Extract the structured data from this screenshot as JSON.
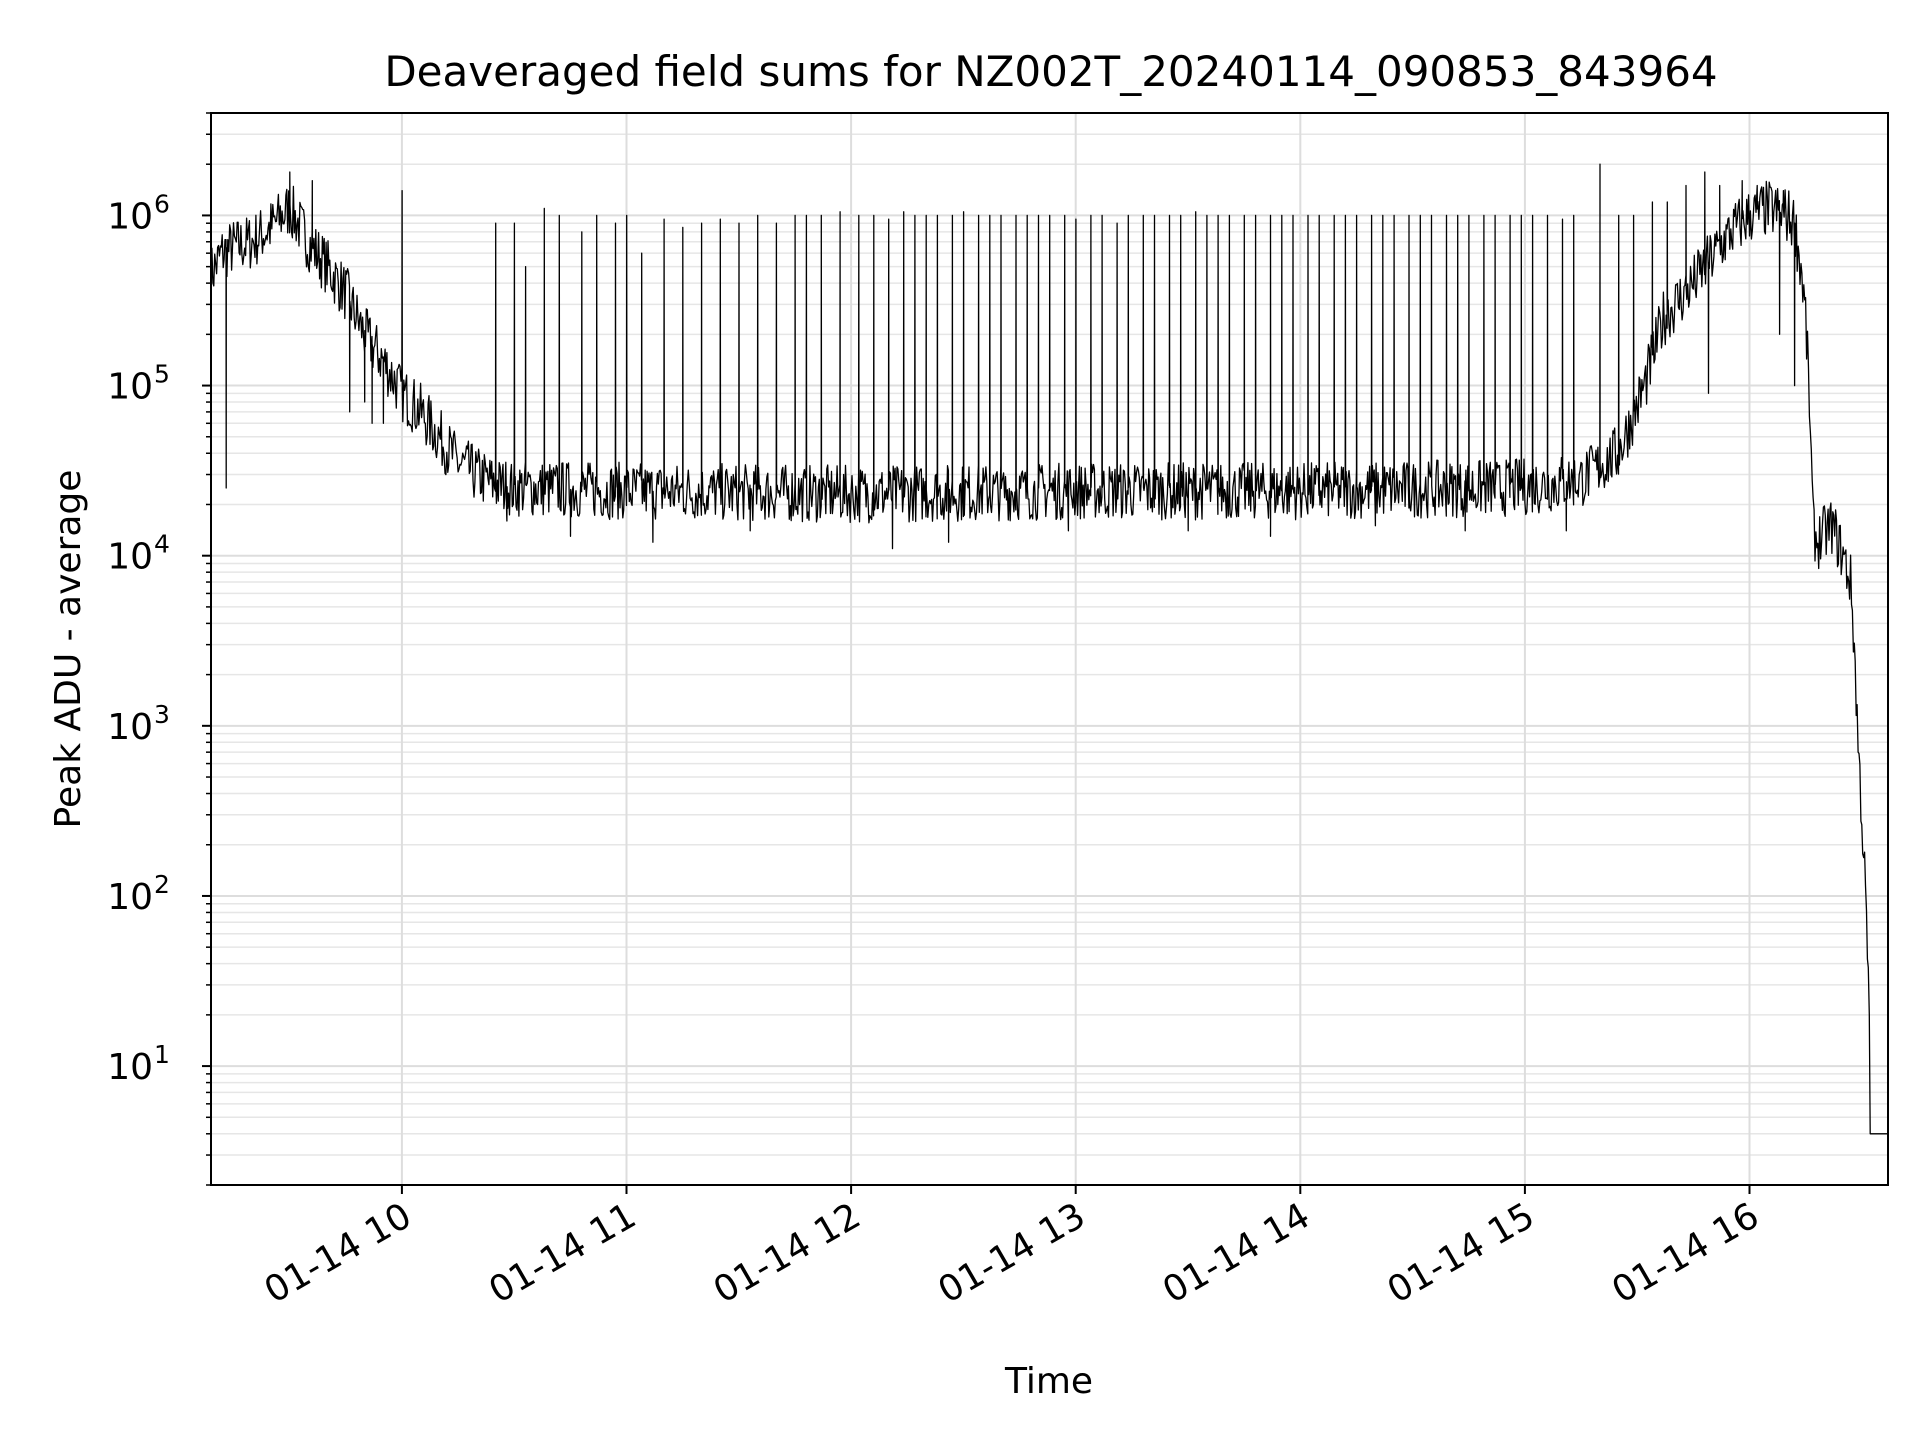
{
  "chart_data": {
    "type": "line",
    "title": "Deaveraged field sums for NZ002T_20240114_090853_843964",
    "xlabel": "Time",
    "ylabel": "Peak ADU - average",
    "yscale": "log",
    "grid": true,
    "legend": "none",
    "xlim": [
      "2024-01-14 09:09",
      "2024-01-14 16:37"
    ],
    "ylim": [
      2,
      4000000
    ],
    "x_ticks": [
      {
        "value": "2024-01-14 10:00",
        "label": "01-14 10"
      },
      {
        "value": "2024-01-14 11:00",
        "label": "01-14 11"
      },
      {
        "value": "2024-01-14 12:00",
        "label": "01-14 12"
      },
      {
        "value": "2024-01-14 13:00",
        "label": "01-14 13"
      },
      {
        "value": "2024-01-14 14:00",
        "label": "01-14 14"
      },
      {
        "value": "2024-01-14 15:00",
        "label": "01-14 15"
      },
      {
        "value": "2024-01-14 16:00",
        "label": "01-14 16"
      }
    ],
    "y_ticks": [
      {
        "value": 10,
        "base": "10",
        "exp": "1"
      },
      {
        "value": 100,
        "base": "10",
        "exp": "2"
      },
      {
        "value": 1000,
        "base": "10",
        "exp": "3"
      },
      {
        "value": 10000,
        "base": "10",
        "exp": "4"
      },
      {
        "value": 100000,
        "base": "10",
        "exp": "5"
      },
      {
        "value": 1000000,
        "base": "10",
        "exp": "6"
      }
    ],
    "series": [
      {
        "color": "#000000",
        "baseline": [
          [
            "2024-01-14 09:09",
            450000
          ],
          [
            "2024-01-14 09:12",
            600000
          ],
          [
            "2024-01-14 09:15",
            650000
          ],
          [
            "2024-01-14 09:20",
            700000
          ],
          [
            "2024-01-14 09:25",
            850000
          ],
          [
            "2024-01-14 09:30",
            1100000
          ],
          [
            "2024-01-14 09:35",
            700000
          ],
          [
            "2024-01-14 09:40",
            500000
          ],
          [
            "2024-01-14 09:45",
            350000
          ],
          [
            "2024-01-14 09:50",
            200000
          ],
          [
            "2024-01-14 09:55",
            140000
          ],
          [
            "2024-01-14 10:00",
            90000
          ],
          [
            "2024-01-14 10:05",
            70000
          ],
          [
            "2024-01-14 10:10",
            50000
          ],
          [
            "2024-01-14 10:15",
            35000
          ],
          [
            "2024-01-14 10:20",
            30000
          ],
          [
            "2024-01-14 10:25",
            26000
          ],
          [
            "2024-01-14 10:30",
            25000
          ],
          [
            "2024-01-14 11:00",
            24000
          ],
          [
            "2024-01-14 12:00",
            23000
          ],
          [
            "2024-01-14 13:00",
            24000
          ],
          [
            "2024-01-14 14:00",
            24000
          ],
          [
            "2024-01-14 14:55",
            25000
          ],
          [
            "2024-01-14 15:05",
            26000
          ],
          [
            "2024-01-14 15:15",
            28000
          ],
          [
            "2024-01-14 15:25",
            40000
          ],
          [
            "2024-01-14 15:32",
            100000
          ],
          [
            "2024-01-14 15:37",
            250000
          ],
          [
            "2024-01-14 15:45",
            400000
          ],
          [
            "2024-01-14 15:55",
            800000
          ],
          [
            "2024-01-14 16:00",
            1000000
          ],
          [
            "2024-01-14 16:05",
            1100000
          ],
          [
            "2024-01-14 16:10",
            1000000
          ],
          [
            "2024-01-14 16:12",
            900000
          ],
          [
            "2024-01-14 16:14",
            450000
          ],
          [
            "2024-01-14 16:15",
            250000
          ],
          [
            "2024-01-14 16:16",
            80000
          ],
          [
            "2024-01-14 16:17",
            15000
          ],
          [
            "2024-01-14 16:18",
            12000
          ],
          [
            "2024-01-14 16:22",
            15000
          ],
          [
            "2024-01-14 16:25",
            10000
          ],
          [
            "2024-01-14 16:27",
            7000
          ],
          [
            "2024-01-14 16:28",
            3000
          ],
          [
            "2024-01-14 16:29",
            800
          ],
          [
            "2024-01-14 16:30",
            300
          ],
          [
            "2024-01-14 16:31",
            100
          ],
          [
            "2024-01-14 16:32",
            20
          ],
          [
            "2024-01-14 16:32",
            4
          ],
          [
            "2024-01-14 16:37",
            4
          ]
        ],
        "spikes": [
          [
            "2024-01-14 09:13",
            25000
          ],
          [
            "2024-01-14 09:30",
            1800000
          ],
          [
            "2024-01-14 09:36",
            1600000
          ],
          [
            "2024-01-14 09:50",
            80000
          ],
          [
            "2024-01-14 09:55",
            60000
          ],
          [
            "2024-01-14 10:00",
            1400000
          ],
          [
            "2024-01-14 10:25",
            900000
          ],
          [
            "2024-01-14 10:30",
            900000
          ],
          [
            "2024-01-14 10:33",
            500000
          ],
          [
            "2024-01-14 10:38",
            1100000
          ],
          [
            "2024-01-14 10:42",
            1000000
          ],
          [
            "2024-01-14 10:48",
            800000
          ],
          [
            "2024-01-14 10:52",
            1000000
          ],
          [
            "2024-01-14 10:57",
            900000
          ],
          [
            "2024-01-14 11:00",
            1000000
          ],
          [
            "2024-01-14 11:04",
            600000
          ],
          [
            "2024-01-14 11:10",
            950000
          ],
          [
            "2024-01-14 11:15",
            850000
          ],
          [
            "2024-01-14 11:20",
            900000
          ],
          [
            "2024-01-14 11:25",
            950000
          ],
          [
            "2024-01-14 11:30",
            900000
          ],
          [
            "2024-01-14 11:35",
            1000000
          ],
          [
            "2024-01-14 11:40",
            900000
          ],
          [
            "2024-01-14 11:45",
            1000000
          ],
          [
            "2024-01-14 11:48",
            1000000
          ],
          [
            "2024-01-14 11:52",
            1000000
          ],
          [
            "2024-01-14 11:57",
            1050000
          ],
          [
            "2024-01-14 12:02",
            1000000
          ],
          [
            "2024-01-14 12:06",
            1000000
          ],
          [
            "2024-01-14 12:10",
            950000
          ],
          [
            "2024-01-14 12:14",
            1050000
          ],
          [
            "2024-01-14 12:17",
            1000000
          ],
          [
            "2024-01-14 12:20",
            1000000
          ],
          [
            "2024-01-14 12:23",
            1000000
          ],
          [
            "2024-01-14 12:27",
            1000000
          ],
          [
            "2024-01-14 12:30",
            1050000
          ],
          [
            "2024-01-14 12:34",
            1000000
          ],
          [
            "2024-01-14 12:37",
            1000000
          ],
          [
            "2024-01-14 12:40",
            1000000
          ],
          [
            "2024-01-14 12:44",
            1000000
          ],
          [
            "2024-01-14 12:47",
            1000000
          ],
          [
            "2024-01-14 12:50",
            1000000
          ],
          [
            "2024-01-14 12:53",
            1000000
          ],
          [
            "2024-01-14 12:57",
            1000000
          ],
          [
            "2024-01-14 13:00",
            950000
          ],
          [
            "2024-01-14 13:04",
            1000000
          ],
          [
            "2024-01-14 13:07",
            1000000
          ],
          [
            "2024-01-14 13:11",
            900000
          ],
          [
            "2024-01-14 13:14",
            1000000
          ],
          [
            "2024-01-14 13:18",
            1000000
          ],
          [
            "2024-01-14 13:21",
            1000000
          ],
          [
            "2024-01-14 13:25",
            1000000
          ],
          [
            "2024-01-14 13:28",
            1000000
          ],
          [
            "2024-01-14 13:32",
            1050000
          ],
          [
            "2024-01-14 13:35",
            1000000
          ],
          [
            "2024-01-14 13:38",
            1000000
          ],
          [
            "2024-01-14 13:41",
            1000000
          ],
          [
            "2024-01-14 13:45",
            1000000
          ],
          [
            "2024-01-14 13:48",
            1000000
          ],
          [
            "2024-01-14 13:52",
            1000000
          ],
          [
            "2024-01-14 13:55",
            1000000
          ],
          [
            "2024-01-14 13:58",
            1000000
          ],
          [
            "2024-01-14 14:02",
            1000000
          ],
          [
            "2024-01-14 14:05",
            1000000
          ],
          [
            "2024-01-14 14:09",
            1000000
          ],
          [
            "2024-01-14 14:12",
            1000000
          ],
          [
            "2024-01-14 14:15",
            1000000
          ],
          [
            "2024-01-14 14:19",
            1000000
          ],
          [
            "2024-01-14 14:22",
            1000000
          ],
          [
            "2024-01-14 14:25",
            1000000
          ],
          [
            "2024-01-14 14:29",
            1000000
          ],
          [
            "2024-01-14 14:32",
            1000000
          ],
          [
            "2024-01-14 14:35",
            1000000
          ],
          [
            "2024-01-14 14:39",
            1000000
          ],
          [
            "2024-01-14 14:42",
            1000000
          ],
          [
            "2024-01-14 14:45",
            1000000
          ],
          [
            "2024-01-14 14:49",
            1000000
          ],
          [
            "2024-01-14 14:52",
            1000000
          ],
          [
            "2024-01-14 14:56",
            1000000
          ],
          [
            "2024-01-14 14:59",
            1000000
          ],
          [
            "2024-01-14 15:02",
            1000000
          ],
          [
            "2024-01-14 15:06",
            1000000
          ],
          [
            "2024-01-14 15:10",
            950000
          ],
          [
            "2024-01-14 15:13",
            1000000
          ],
          [
            "2024-01-14 15:20",
            2000000
          ],
          [
            "2024-01-14 15:25",
            1000000
          ],
          [
            "2024-01-14 15:29",
            1000000
          ],
          [
            "2024-01-14 15:34",
            1200000
          ],
          [
            "2024-01-14 15:38",
            1200000
          ],
          [
            "2024-01-14 15:43",
            1500000
          ],
          [
            "2024-01-14 15:48",
            1800000
          ],
          [
            "2024-01-14 15:52",
            1500000
          ],
          [
            "2024-01-14 15:58",
            1600000
          ],
          [
            "2024-01-14 16:02",
            1500000
          ],
          [
            "2024-01-14 16:06",
            1300000
          ],
          [
            "2024-01-14 16:09",
            1400000
          ]
        ],
        "dips": [
          [
            "2024-01-14 09:46",
            70000
          ],
          [
            "2024-01-14 09:52",
            60000
          ],
          [
            "2024-01-14 10:28",
            16000
          ],
          [
            "2024-01-14 10:45",
            13000
          ],
          [
            "2024-01-14 11:07",
            12000
          ],
          [
            "2024-01-14 11:33",
            14000
          ],
          [
            "2024-01-14 12:11",
            11000
          ],
          [
            "2024-01-14 12:26",
            12000
          ],
          [
            "2024-01-14 12:58",
            14000
          ],
          [
            "2024-01-14 13:30",
            14000
          ],
          [
            "2024-01-14 13:52",
            13000
          ],
          [
            "2024-01-14 14:20",
            15000
          ],
          [
            "2024-01-14 14:44",
            14000
          ],
          [
            "2024-01-14 15:11",
            14000
          ],
          [
            "2024-01-14 15:49",
            90000
          ],
          [
            "2024-01-14 16:08",
            200000
          ],
          [
            "2024-01-14 16:12",
            100000
          ]
        ]
      }
    ]
  }
}
